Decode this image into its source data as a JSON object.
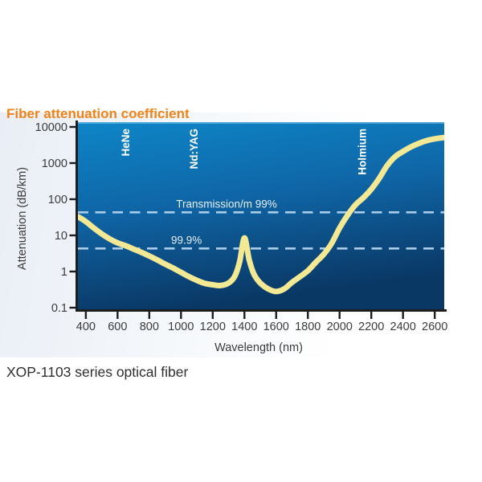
{
  "page": {
    "title": "Fiber attenuation coefficient",
    "caption": "XOP-1103 series optical fiber"
  },
  "chart_data": {
    "type": "line",
    "title": "Fiber attenuation coefficient",
    "xlabel": "Wavelength (nm)",
    "ylabel": "Attenuation (dB/km)",
    "x_scale": "linear",
    "y_scale": "log",
    "xlim": [
      350,
      2660
    ],
    "ylim": [
      0.1,
      10000
    ],
    "grid": false,
    "x_ticks": [
      {
        "value": 400,
        "label": "400"
      },
      {
        "value": 600,
        "label": "600"
      },
      {
        "value": 800,
        "label": "800"
      },
      {
        "value": 1000,
        "label": "1000"
      },
      {
        "value": 1200,
        "label": "1200"
      },
      {
        "value": 1400,
        "label": "1400"
      },
      {
        "value": 1600,
        "label": "1600"
      },
      {
        "value": 1800,
        "label": "1800"
      },
      {
        "value": 2000,
        "label": "2000"
      },
      {
        "value": 2200,
        "label": "2200"
      },
      {
        "value": 2400,
        "label": "2400"
      },
      {
        "value": 2600,
        "label": "2600"
      }
    ],
    "y_ticks": [
      {
        "value": 10000,
        "label": "10000"
      },
      {
        "value": 1000,
        "label": "1000"
      },
      {
        "value": 100,
        "label": "100"
      },
      {
        "value": 10,
        "label": "10"
      },
      {
        "value": 1,
        "label": "1"
      },
      {
        "value": 0.1,
        "label": "0.1"
      }
    ],
    "series": [
      {
        "name": "fiber-attenuation-curve",
        "points": [
          [
            350,
            33
          ],
          [
            400,
            24
          ],
          [
            450,
            16
          ],
          [
            500,
            11
          ],
          [
            550,
            8
          ],
          [
            600,
            6.2
          ],
          [
            650,
            5.2
          ],
          [
            700,
            4.2
          ],
          [
            750,
            3.4
          ],
          [
            800,
            2.7
          ],
          [
            850,
            2.1
          ],
          [
            900,
            1.6
          ],
          [
            950,
            1.25
          ],
          [
            1000,
            0.95
          ],
          [
            1050,
            0.72
          ],
          [
            1100,
            0.57
          ],
          [
            1150,
            0.47
          ],
          [
            1200,
            0.43
          ],
          [
            1250,
            0.41
          ],
          [
            1300,
            0.48
          ],
          [
            1340,
            0.75
          ],
          [
            1370,
            1.9
          ],
          [
            1400,
            8.5
          ],
          [
            1430,
            2.1
          ],
          [
            1460,
            0.85
          ],
          [
            1500,
            0.48
          ],
          [
            1550,
            0.33
          ],
          [
            1600,
            0.28
          ],
          [
            1650,
            0.33
          ],
          [
            1700,
            0.5
          ],
          [
            1750,
            0.72
          ],
          [
            1800,
            1.05
          ],
          [
            1850,
            1.8
          ],
          [
            1900,
            3.0
          ],
          [
            1950,
            6
          ],
          [
            2000,
            16
          ],
          [
            2050,
            36
          ],
          [
            2100,
            70
          ],
          [
            2150,
            110
          ],
          [
            2200,
            190
          ],
          [
            2250,
            380
          ],
          [
            2300,
            850
          ],
          [
            2350,
            1500
          ],
          [
            2400,
            2100
          ],
          [
            2450,
            2800
          ],
          [
            2500,
            3500
          ],
          [
            2550,
            4200
          ],
          [
            2600,
            4700
          ],
          [
            2660,
            5100
          ]
        ]
      }
    ],
    "reference_lines": [
      {
        "label": "Transmission/m 99%",
        "value": 43.4
      },
      {
        "label": "99.9%",
        "value": 4.34
      }
    ],
    "annotations": [
      {
        "label": "HeNe",
        "wavelength": 650
      },
      {
        "label": "Nd:YAG",
        "wavelength": 1080
      },
      {
        "label": "Holmium",
        "wavelength": 2140
      }
    ],
    "colors": {
      "title": "#EF8318",
      "curve": "#F3E894",
      "dashed_line": "#A9CDE9",
      "axis": "#1d1d1d",
      "plot_gradient_top": "#0E86C7",
      "plot_gradient_mid": "#0F65A6",
      "plot_gradient_bottom": "#0A3865",
      "plot_top_highlight": "#8FD0F0",
      "laser_label_text": "#FFFFFF",
      "ref_label_text": "#E6F0F8",
      "tick_label_text": "#3B3B3B"
    }
  }
}
